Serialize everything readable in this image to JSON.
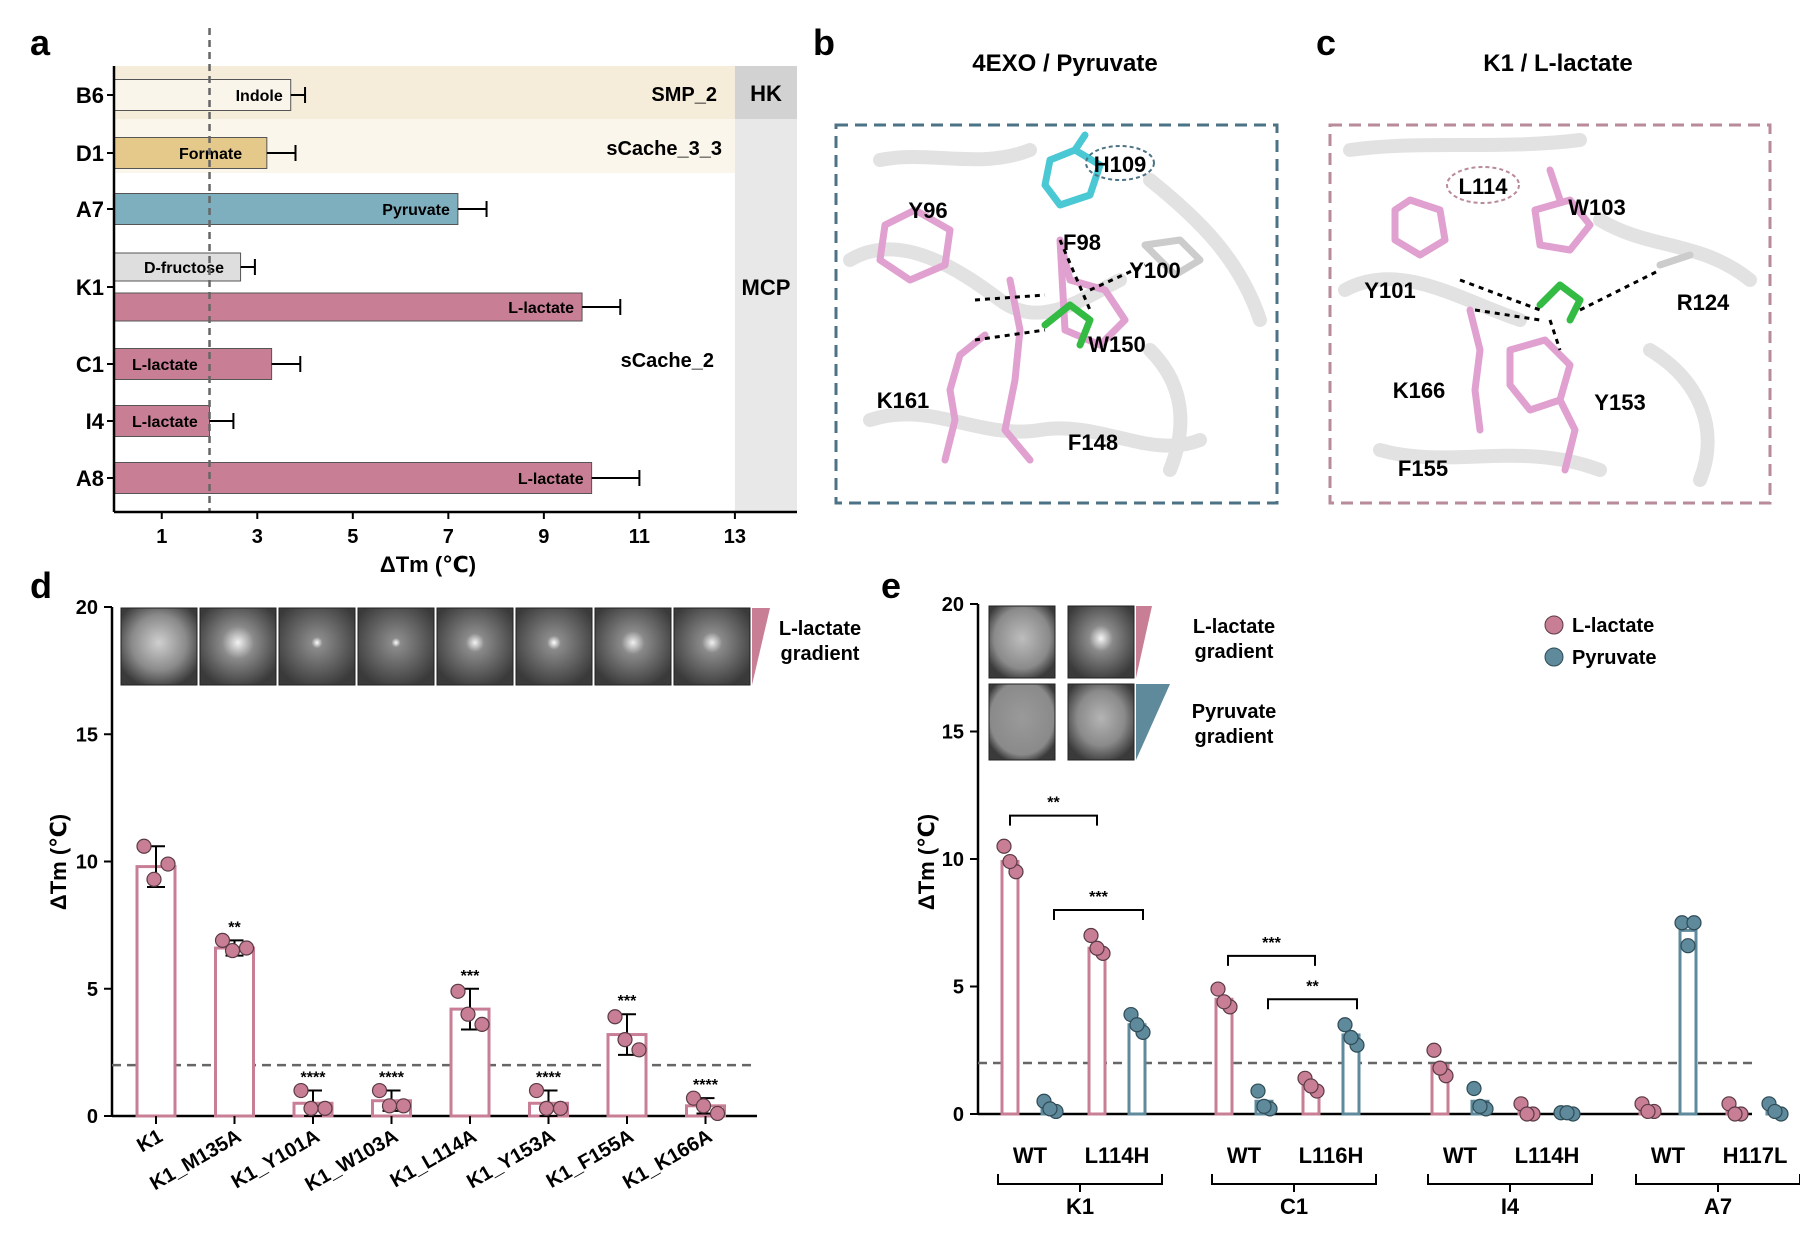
{
  "panel_labels": {
    "a": "a",
    "b": "b",
    "c": "c",
    "d": "d",
    "e": "e"
  },
  "colors": {
    "lactate": "#c87f95",
    "pyruvate": "#5e8a9c",
    "indole": "#faf5ea",
    "formate": "#e5c98a",
    "pyruvate_bar": "#7eafbf",
    "fructose": "#dedede",
    "hk_bg": "#d2d2d2",
    "mcp_bg": "#e8e8e8",
    "band1": "#f6ecda",
    "band2": "#fbf6ec",
    "dash_b": "#4c7285",
    "dash_c": "#b88a9a"
  },
  "panel_b": {
    "title": "4EXO / Pyruvate",
    "residues": [
      "H109",
      "Y96",
      "F98",
      "Y100",
      "W150",
      "K161",
      "F148"
    ]
  },
  "panel_c": {
    "title": "K1 / L-lactate",
    "residues": [
      "L114",
      "W103",
      "Y101",
      "R124",
      "K166",
      "Y153",
      "F155"
    ]
  },
  "chart_data": [
    {
      "panel": "a",
      "type": "bar",
      "orientation": "horizontal",
      "xlabel": "ΔTm (℃)",
      "xlim": [
        0,
        14.3
      ],
      "xticks": [
        1,
        3,
        5,
        7,
        9,
        11,
        13
      ],
      "threshold": 2,
      "domains": [
        {
          "name": "SMP_2",
          "rows": [
            "B6"
          ]
        },
        {
          "name": "sCache_3_3",
          "rows": [
            "D1"
          ]
        },
        {
          "name": "sCache_2",
          "rows": [
            "A7",
            "K1",
            "C1",
            "I4",
            "A8"
          ]
        }
      ],
      "families": [
        {
          "name": "HK",
          "rows": [
            "B6"
          ]
        },
        {
          "name": "MCP",
          "rows": [
            "D1",
            "A7",
            "K1",
            "C1",
            "I4",
            "A8"
          ]
        }
      ],
      "rows": [
        "B6",
        "D1",
        "A7",
        "K1",
        "C1",
        "I4",
        "A8"
      ],
      "bars": [
        {
          "row": "B6",
          "ligand": "Indole",
          "value": 3.7,
          "err": 0.3
        },
        {
          "row": "D1",
          "ligand": "Formate",
          "value": 3.2,
          "err": 0.6
        },
        {
          "row": "A7",
          "ligand": "Pyruvate",
          "value": 7.2,
          "err": 0.6
        },
        {
          "row": "K1",
          "ligand": "D-fructose",
          "value": 2.65,
          "err": 0.3
        },
        {
          "row": "K1",
          "ligand": "L-lactate",
          "value": 9.8,
          "err": 0.8
        },
        {
          "row": "C1",
          "ligand": "L-lactate",
          "value": 3.3,
          "err": 0.6
        },
        {
          "row": "I4",
          "ligand": "L-lactate",
          "value": 2.0,
          "err": 0.5
        },
        {
          "row": "A8",
          "ligand": "L-lactate",
          "value": 10.0,
          "err": 1.0
        }
      ]
    },
    {
      "panel": "d",
      "type": "bar",
      "ylabel": "ΔTm (℃)",
      "ylim": [
        0,
        20
      ],
      "yticks": [
        0,
        5,
        10,
        15,
        20
      ],
      "threshold": 2,
      "gradient_label": [
        "L-lactate",
        "gradient"
      ],
      "categories": [
        "K1",
        "K1_M135A",
        "K1_Y101A",
        "K1_W103A",
        "K1_L114A",
        "K1_Y153A",
        "K1_F155A",
        "K1_K166A"
      ],
      "values": [
        9.8,
        6.6,
        0.5,
        0.6,
        4.2,
        0.5,
        3.2,
        0.4
      ],
      "errors": [
        0.8,
        0.3,
        0.5,
        0.4,
        0.8,
        0.5,
        0.8,
        0.3
      ],
      "points": [
        [
          10.6,
          9.9,
          9.3
        ],
        [
          6.9,
          6.6,
          6.5
        ],
        [
          1.0,
          0.3,
          0.3
        ],
        [
          1.0,
          0.4,
          0.4
        ],
        [
          4.9,
          3.6,
          4.0
        ],
        [
          1.0,
          0.3,
          0.3
        ],
        [
          3.9,
          2.6,
          3.0
        ],
        [
          0.7,
          0.1,
          0.4
        ]
      ],
      "significance": [
        "",
        "**",
        "****",
        "****",
        "***",
        "****",
        "***",
        "****"
      ]
    },
    {
      "panel": "e",
      "type": "bar",
      "ylabel": "ΔTm (℃)",
      "ylim": [
        0,
        20
      ],
      "yticks": [
        0,
        5,
        10,
        15,
        20
      ],
      "threshold": 2,
      "legend": [
        "L-lactate",
        "Pyruvate"
      ],
      "legend_position": "top-right",
      "gradient_labels": [
        [
          "L-lactate",
          "gradient"
        ],
        [
          "Pyruvate",
          "gradient"
        ]
      ],
      "groups": [
        {
          "name": "K1",
          "variants": [
            "WT",
            "L114H"
          ],
          "lactate": [
            9.9,
            6.5
          ],
          "pyruvate": [
            0.3,
            3.5
          ],
          "lactate_pts": [
            [
              10.5,
              9.5,
              9.9
            ],
            [
              7.0,
              6.3,
              6.5
            ]
          ],
          "pyruvate_pts": [
            [
              0.5,
              0.1,
              0.2
            ],
            [
              3.9,
              3.2,
              3.5
            ]
          ]
        },
        {
          "name": "C1",
          "variants": [
            "WT",
            "L116H"
          ],
          "lactate": [
            4.5,
            1.1
          ],
          "pyruvate": [
            0.5,
            3.1
          ],
          "lactate_pts": [
            [
              4.9,
              4.2,
              4.4
            ],
            [
              1.4,
              0.9,
              1.1
            ]
          ],
          "pyruvate_pts": [
            [
              0.9,
              0.2,
              0.3
            ],
            [
              3.5,
              2.7,
              3.0
            ]
          ]
        },
        {
          "name": "I4",
          "variants": [
            "WT",
            "L114H"
          ],
          "lactate": [
            1.9,
            0.1
          ],
          "pyruvate": [
            0.5,
            0.05
          ],
          "lactate_pts": [
            [
              2.5,
              1.5,
              1.8
            ],
            [
              0.4,
              0.0,
              0.0
            ]
          ],
          "pyruvate_pts": [
            [
              1.0,
              0.2,
              0.3
            ],
            [
              0.05,
              0.0,
              0.05
            ]
          ]
        },
        {
          "name": "A7",
          "variants": [
            "WT",
            "H117L"
          ],
          "lactate": [
            0.2,
            0.1
          ],
          "pyruvate": [
            7.2,
            0.15
          ],
          "lactate_pts": [
            [
              0.4,
              0.1,
              0.1
            ],
            [
              0.4,
              0.0,
              0.0
            ]
          ],
          "pyruvate_pts": [
            [
              7.5,
              7.5,
              6.6
            ],
            [
              0.4,
              0.0,
              0.1
            ]
          ]
        }
      ],
      "brackets": [
        {
          "label": "**",
          "y": 11.7
        },
        {
          "label": "***",
          "y": 8.0
        },
        {
          "label": "***",
          "y": 6.2
        },
        {
          "label": "**",
          "y": 4.5
        }
      ]
    }
  ]
}
